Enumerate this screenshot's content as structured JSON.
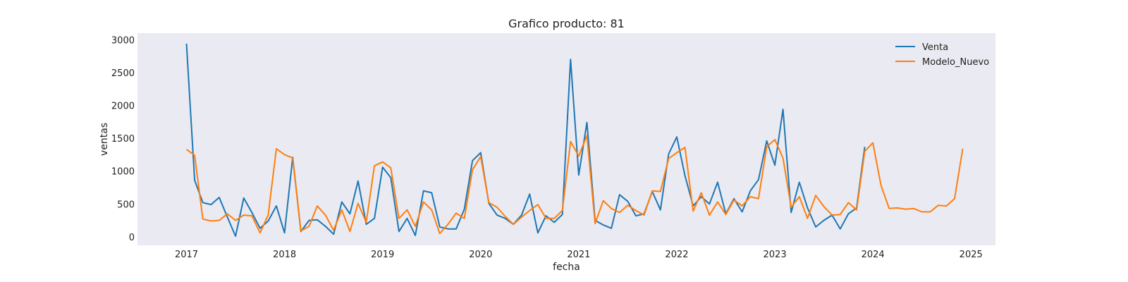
{
  "chart_data": {
    "type": "line",
    "title": "Grafico producto: 81",
    "xlabel": "fecha",
    "ylabel": "ventas",
    "grid": false,
    "legend": "top-right",
    "x_ticks": [
      "2017",
      "2018",
      "2019",
      "2020",
      "2021",
      "2022",
      "2023",
      "2024",
      "2025"
    ],
    "y_ticks": [
      0,
      500,
      1000,
      1500,
      2000,
      2500,
      3000
    ],
    "xlim": [
      "2016-07",
      "2025-04"
    ],
    "ylim": [
      -130,
      3100
    ],
    "colors": {
      "plot_background": "#eaeaf2"
    },
    "series": [
      {
        "name": "Venta",
        "color": "#1f77b4",
        "x": [
          "2017-01",
          "2017-02",
          "2017-03",
          "2017-04",
          "2017-05",
          "2017-06",
          "2017-07",
          "2017-08",
          "2017-09",
          "2017-10",
          "2017-11",
          "2017-12",
          "2018-01",
          "2018-02",
          "2018-03",
          "2018-04",
          "2018-05",
          "2018-06",
          "2018-07",
          "2018-08",
          "2018-09",
          "2018-10",
          "2018-11",
          "2018-12",
          "2019-01",
          "2019-02",
          "2019-03",
          "2019-04",
          "2019-05",
          "2019-06",
          "2019-07",
          "2019-08",
          "2019-09",
          "2019-10",
          "2019-11",
          "2019-12",
          "2020-01",
          "2020-02",
          "2020-03",
          "2020-04",
          "2020-05",
          "2020-06",
          "2020-07",
          "2020-08",
          "2020-09",
          "2020-10",
          "2020-11",
          "2020-12",
          "2021-01",
          "2021-02",
          "2021-03",
          "2021-04",
          "2021-05",
          "2021-06",
          "2021-07",
          "2021-08",
          "2021-09",
          "2021-10",
          "2021-11",
          "2021-12",
          "2022-01",
          "2022-02",
          "2022-03",
          "2022-04",
          "2022-05",
          "2022-06",
          "2022-07",
          "2022-08",
          "2022-09",
          "2022-10",
          "2022-11",
          "2022-12",
          "2023-01",
          "2023-02",
          "2023-03",
          "2023-04",
          "2023-05",
          "2023-06",
          "2023-07",
          "2023-08",
          "2023-09",
          "2023-10",
          "2023-11",
          "2023-12"
        ],
        "values": [
          2940,
          860,
          520,
          490,
          600,
          300,
          10,
          590,
          370,
          130,
          240,
          470,
          60,
          1210,
          80,
          250,
          260,
          160,
          40,
          530,
          350,
          850,
          190,
          280,
          1060,
          900,
          80,
          280,
          20,
          700,
          670,
          150,
          120,
          120,
          420,
          1160,
          1280,
          510,
          330,
          280,
          190,
          330,
          650,
          60,
          320,
          220,
          340,
          2700,
          940,
          1740,
          250,
          180,
          130,
          640,
          540,
          320,
          350,
          690,
          410,
          1260,
          1520,
          930,
          470,
          610,
          500,
          830,
          350,
          580,
          380,
          700,
          870,
          1460,
          1090,
          1940,
          370,
          830,
          440,
          150,
          250,
          330,
          120,
          350,
          440,
          1370
        ]
      },
      {
        "name": "Modelo_Nuevo",
        "color": "#ff7f0e",
        "x": [
          "2017-01",
          "2017-02",
          "2017-03",
          "2017-04",
          "2017-05",
          "2017-06",
          "2017-07",
          "2017-08",
          "2017-09",
          "2017-10",
          "2017-11",
          "2017-12",
          "2018-01",
          "2018-02",
          "2018-03",
          "2018-04",
          "2018-05",
          "2018-06",
          "2018-07",
          "2018-08",
          "2018-09",
          "2018-10",
          "2018-11",
          "2018-12",
          "2019-01",
          "2019-02",
          "2019-03",
          "2019-04",
          "2019-05",
          "2019-06",
          "2019-07",
          "2019-08",
          "2019-09",
          "2019-10",
          "2019-11",
          "2019-12",
          "2020-01",
          "2020-02",
          "2020-03",
          "2020-04",
          "2020-05",
          "2020-06",
          "2020-07",
          "2020-08",
          "2020-09",
          "2020-10",
          "2020-11",
          "2020-12",
          "2021-01",
          "2021-02",
          "2021-03",
          "2021-04",
          "2021-05",
          "2021-06",
          "2021-07",
          "2021-08",
          "2021-09",
          "2021-10",
          "2021-11",
          "2021-12",
          "2022-01",
          "2022-02",
          "2022-03",
          "2022-04",
          "2022-05",
          "2022-06",
          "2022-07",
          "2022-08",
          "2022-09",
          "2022-10",
          "2022-11",
          "2022-12",
          "2023-01",
          "2023-02",
          "2023-03",
          "2023-04",
          "2023-05",
          "2023-06",
          "2023-07",
          "2023-08",
          "2023-09",
          "2023-10",
          "2023-11",
          "2023-12",
          "2024-01",
          "2024-02",
          "2024-03",
          "2024-04",
          "2024-05",
          "2024-06",
          "2024-07",
          "2024-08",
          "2024-09",
          "2024-10",
          "2024-11",
          "2024-12"
        ],
        "values": [
          1330,
          1240,
          270,
          240,
          250,
          350,
          250,
          330,
          320,
          60,
          330,
          1340,
          1250,
          1200,
          90,
          160,
          470,
          330,
          100,
          410,
          80,
          510,
          220,
          1080,
          1140,
          1050,
          280,
          410,
          160,
          530,
          410,
          50,
          190,
          360,
          280,
          1020,
          1220,
          520,
          450,
          310,
          190,
          300,
          400,
          490,
          280,
          280,
          400,
          1450,
          1230,
          1540,
          200,
          550,
          430,
          370,
          480,
          400,
          330,
          700,
          690,
          1190,
          1280,
          1360,
          390,
          670,
          330,
          530,
          340,
          560,
          470,
          610,
          580,
          1370,
          1480,
          1200,
          450,
          610,
          280,
          630,
          460,
          330,
          340,
          520,
          410,
          1300,
          1430,
          780,
          430,
          440,
          420,
          430,
          380,
          380,
          480,
          470,
          580,
          1340
        ]
      }
    ]
  }
}
